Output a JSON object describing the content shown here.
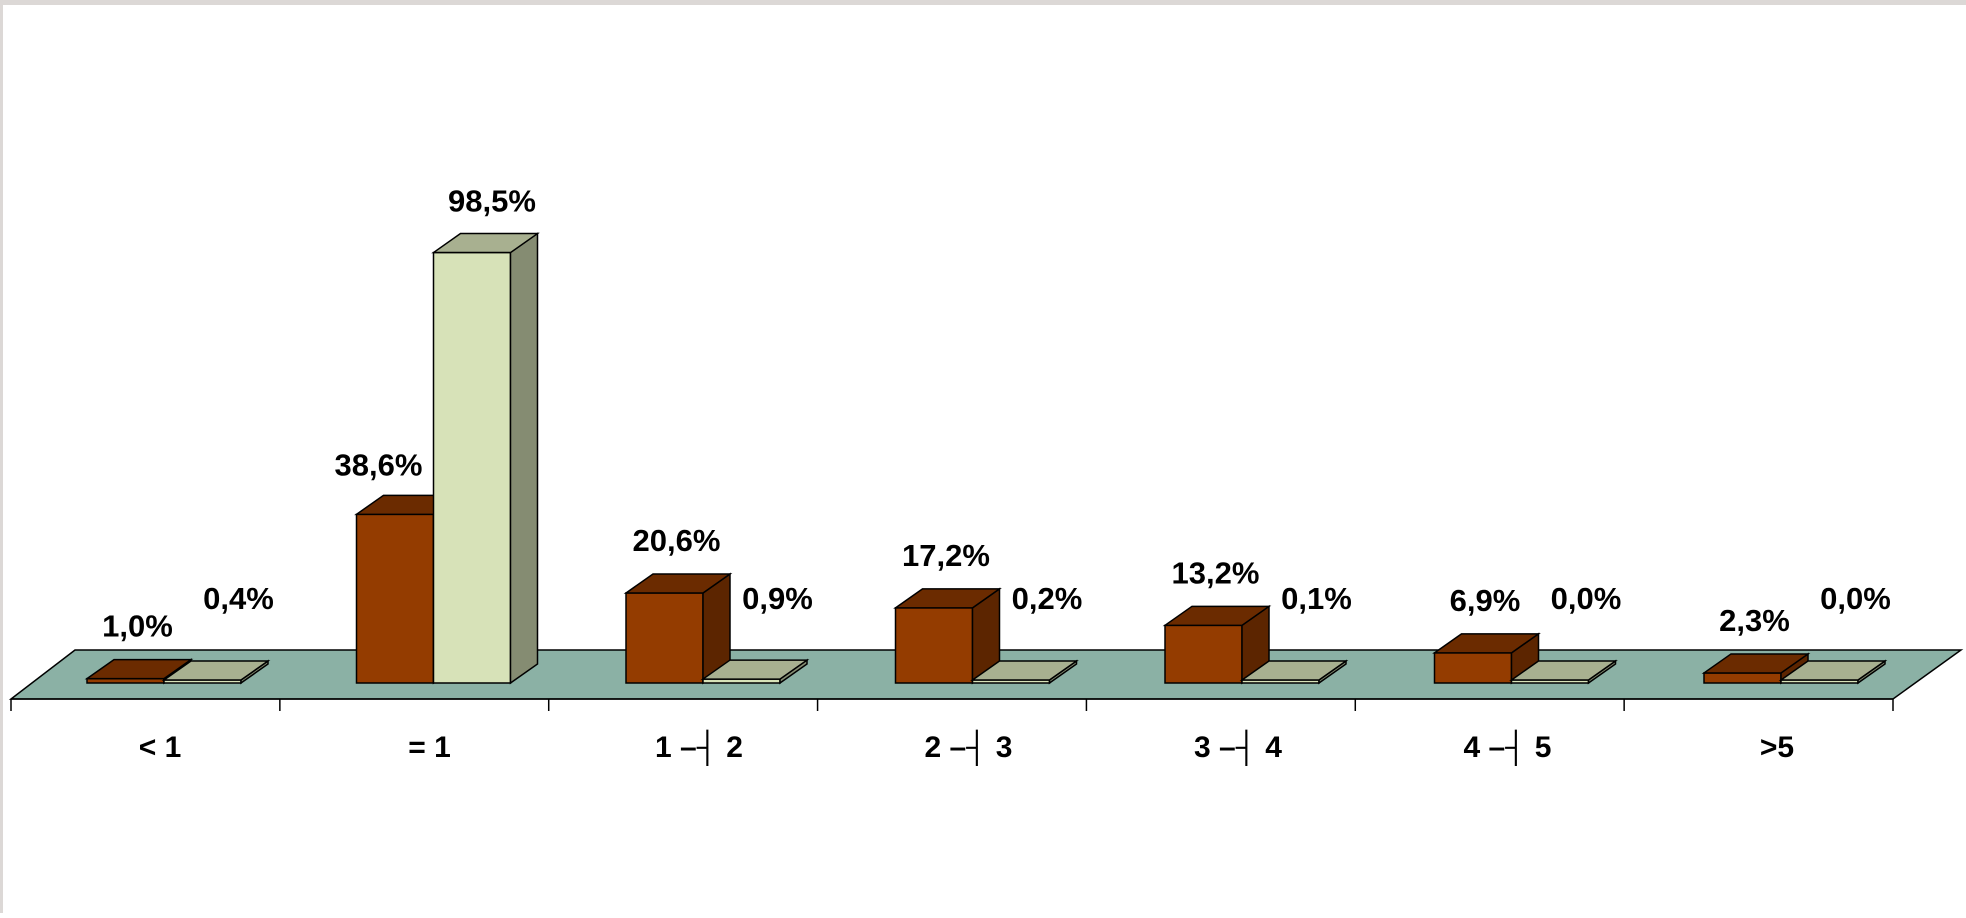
{
  "chart_data": {
    "type": "bar",
    "categories": [
      "< 1",
      "= 1",
      "1 –┤  2",
      "2 –┤  3",
      "3 –┤  4",
      "4 –┤  5",
      ">5"
    ],
    "series": [
      {
        "values": [
          1.0,
          38.6,
          20.6,
          17.2,
          13.2,
          6.9,
          2.3
        ],
        "labels": [
          "1,0%",
          "38,6%",
          "20,6%",
          "17,2%",
          "13,2%",
          "6,9%",
          "2,3%"
        ],
        "color": "#943c00"
      },
      {
        "values": [
          0.4,
          98.5,
          0.9,
          0.2,
          0.1,
          0.0,
          0.0
        ],
        "labels": [
          "0,4%",
          "98,5%",
          "0,9%",
          "0,2%",
          "0,1%",
          "0,0%",
          "0,0%"
        ],
        "color": "#d7e2b8"
      }
    ],
    "ylim": [
      0,
      100
    ],
    "grid": false,
    "legend": "none",
    "style": "3d-clustered",
    "floor_color": "#8bb1a5"
  }
}
